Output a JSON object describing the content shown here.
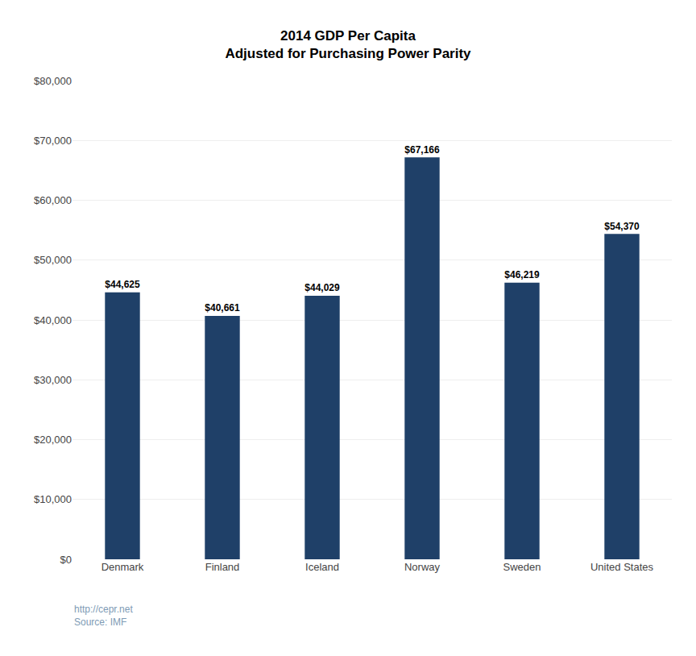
{
  "chart_data": {
    "type": "bar",
    "title": "2014 GDP Per Capita",
    "subtitle": "Adjusted for Purchasing Power Parity",
    "categories": [
      "Denmark",
      "Finland",
      "Iceland",
      "Norway",
      "Sweden",
      "United States"
    ],
    "values": [
      44625,
      40661,
      44029,
      67166,
      46219,
      54370
    ],
    "value_labels": [
      "$44,625",
      "$40,661",
      "$44,029",
      "$67,166",
      "$46,219",
      "$54,370"
    ],
    "data_labels": true,
    "color": "#1F4068",
    "ylim": [
      0,
      80000
    ],
    "yticks": [
      {
        "value": 0,
        "label": "$0"
      },
      {
        "value": 10000,
        "label": "$10,000"
      },
      {
        "value": 20000,
        "label": "$20,000"
      },
      {
        "value": 30000,
        "label": "$30,000"
      },
      {
        "value": 40000,
        "label": "$40,000"
      },
      {
        "value": 50000,
        "label": "$50,000"
      },
      {
        "value": 60000,
        "label": "$60,000"
      },
      {
        "value": 70000,
        "label": "$70,000"
      },
      {
        "value": 80000,
        "label": "$80,000"
      }
    ],
    "grid": true,
    "annotations": [
      "http://cepr.net",
      "Source: IMF"
    ]
  }
}
